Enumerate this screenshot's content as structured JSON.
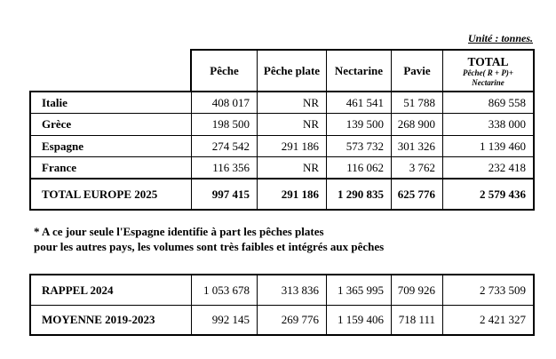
{
  "unit_label": "Unité : tonnes.",
  "table1": {
    "column_headers": [
      "Pêche",
      "Pêche plate",
      "Nectarine",
      "Pavie"
    ],
    "total_header": {
      "title": "TOTAL",
      "sub1": "Pêche( R + P)+",
      "sub2": "Nectarine"
    },
    "rows": [
      {
        "label": "Italie",
        "values": [
          "408 017",
          "NR",
          "461 541",
          "51 788",
          "869 558"
        ]
      },
      {
        "label": "Grèce",
        "values": [
          "198 500",
          "NR",
          "139 500",
          "268 900",
          "338 000"
        ]
      },
      {
        "label": "Espagne",
        "values": [
          "274 542",
          "291 186",
          "573 732",
          "301 326",
          "1 139 460"
        ]
      },
      {
        "label": "France",
        "values": [
          "116 356",
          "NR",
          "116 062",
          "3 762",
          "232 418"
        ]
      }
    ],
    "total_row": {
      "label": "TOTAL EUROPE 2025",
      "values": [
        "997 415",
        "291 186",
        "1 290 835",
        "625 776",
        "2 579 436"
      ]
    }
  },
  "footnote": {
    "line1": "* A ce jour seule l'Espagne identifie à part les pêches plates",
    "line2": "pour les autres pays, les volumes sont très faibles et intégrés aux pêches"
  },
  "table2": {
    "rows": [
      {
        "label": "RAPPEL 2024",
        "values": [
          "1 053 678",
          "313 836",
          "1 365 995",
          "709 926",
          "2 733 509"
        ]
      },
      {
        "label": "MOYENNE 2019-2023",
        "values": [
          "992 145",
          "269 776",
          "1 159 406",
          "718 111",
          "2 421 327"
        ]
      }
    ]
  },
  "colors": {
    "text": "#000000",
    "border": "#000000",
    "background": "#ffffff"
  }
}
